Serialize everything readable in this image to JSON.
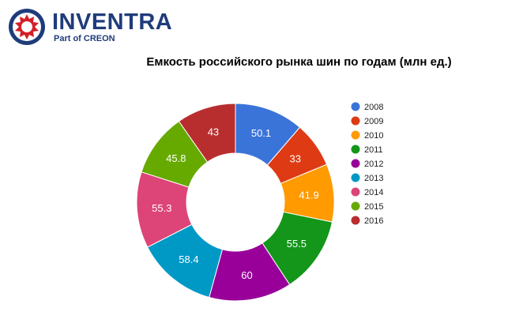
{
  "logo": {
    "name": "INVENTRA",
    "sub": "Part of CREON",
    "colors": {
      "ring": "#1f3c7a",
      "star": "#d32027"
    }
  },
  "chart_data": {
    "type": "pie",
    "donut": true,
    "title": "Емкость российского рынка шин по годам (млн ед.)",
    "legend_position": "right",
    "categories": [
      "2008",
      "2009",
      "2010",
      "2011",
      "2012",
      "2013",
      "2014",
      "2015",
      "2016"
    ],
    "values": [
      50.1,
      33,
      41.9,
      55.5,
      60,
      58.4,
      55.3,
      45.8,
      43
    ],
    "labels": [
      "50.1",
      "33",
      "41.9",
      "55.5",
      "60",
      "58.4",
      "55.3",
      "45.8",
      "43"
    ],
    "colors": [
      "#3b74d9",
      "#de3b14",
      "#ff9a00",
      "#13961a",
      "#990099",
      "#0099c6",
      "#dd4477",
      "#66aa00",
      "#b82e2e"
    ]
  }
}
